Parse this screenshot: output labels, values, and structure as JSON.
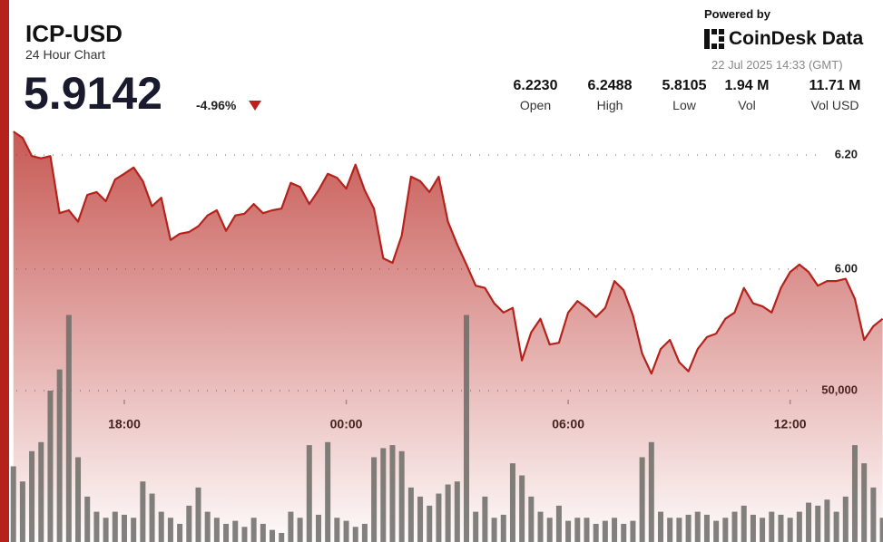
{
  "header": {
    "symbol": "ICP-USD",
    "subtitle": "24 Hour Chart",
    "price": "5.9142",
    "change": "-4.96%",
    "powered": "Powered by",
    "brand": "CoinDesk Data",
    "timestamp": "22 Jul 2025 14:33 (GMT)",
    "stats": [
      {
        "value": "6.2230",
        "label": "Open"
      },
      {
        "value": "6.2488",
        "label": "High"
      },
      {
        "value": "5.8105",
        "label": "Low"
      },
      {
        "value": "1.94 M",
        "label": "Vol"
      },
      {
        "value": "11.71 M",
        "label": "Vol USD"
      }
    ]
  },
  "chart_data": {
    "type": "line",
    "categories": [
      null,
      null,
      null,
      null,
      null,
      null,
      null,
      null,
      null,
      null,
      null,
      null,
      "18:00",
      null,
      null,
      null,
      null,
      null,
      null,
      null,
      null,
      null,
      null,
      null,
      null,
      null,
      null,
      null,
      null,
      null,
      null,
      null,
      null,
      null,
      null,
      null,
      "00:00",
      null,
      null,
      null,
      null,
      null,
      null,
      null,
      null,
      null,
      null,
      null,
      null,
      null,
      null,
      null,
      null,
      null,
      null,
      null,
      null,
      null,
      null,
      null,
      "06:00",
      null,
      null,
      null,
      null,
      null,
      null,
      null,
      null,
      null,
      null,
      null,
      null,
      null,
      null,
      null,
      null,
      null,
      null,
      null,
      null,
      null,
      null,
      null,
      "12:00",
      null,
      null,
      null,
      null,
      null,
      null,
      null,
      null,
      null,
      null
    ],
    "series": [
      {
        "color": "#b5221c",
        "values": [
          6.241,
          6.23,
          6.198,
          6.194,
          6.198,
          6.098,
          6.103,
          6.083,
          6.13,
          6.135,
          6.119,
          6.157,
          6.167,
          6.178,
          6.154,
          6.11,
          6.125,
          6.051,
          6.062,
          6.065,
          6.075,
          6.094,
          6.103,
          6.067,
          6.094,
          6.097,
          6.114,
          6.098,
          6.103,
          6.106,
          6.151,
          6.144,
          6.114,
          6.138,
          6.167,
          6.16,
          6.141,
          6.183,
          6.138,
          6.106,
          6.019,
          6.011,
          6.059,
          6.162,
          6.154,
          6.135,
          6.162,
          6.083,
          6.043,
          6.008,
          5.971,
          5.967,
          5.94,
          5.924,
          5.932,
          5.84,
          5.889,
          5.913,
          5.868,
          5.871,
          5.924,
          5.944,
          5.932,
          5.916,
          5.932,
          5.979,
          5.963,
          5.919,
          5.852,
          5.817,
          5.86,
          5.876,
          5.837,
          5.821,
          5.86,
          5.881,
          5.887,
          5.913,
          5.924,
          5.967,
          5.94,
          5.935,
          5.924,
          5.967,
          5.995,
          6.008,
          5.995,
          5.971,
          5.979,
          5.979,
          5.983,
          5.948,
          5.876,
          5.9,
          5.913
        ]
      },
      {
        "axis": "y2",
        "type": "bar",
        "color": "#6b6b66",
        "values": [
          25000,
          20000,
          30000,
          33000,
          50000,
          57000,
          75000,
          28000,
          15000,
          10000,
          8000,
          10000,
          9000,
          8000,
          20000,
          16000,
          10000,
          8000,
          6000,
          12000,
          18000,
          10000,
          8000,
          6000,
          7000,
          5000,
          8000,
          6000,
          4000,
          3000,
          10000,
          8000,
          32000,
          9000,
          33000,
          8000,
          7000,
          5000,
          6000,
          28000,
          31000,
          32000,
          30000,
          18000,
          15000,
          12000,
          16000,
          19000,
          20000,
          75000,
          10000,
          15000,
          8000,
          9000,
          26000,
          22000,
          15000,
          10000,
          8000,
          12000,
          7000,
          8000,
          8000,
          6000,
          7000,
          8000,
          6000,
          7000,
          28000,
          33000,
          10000,
          8000,
          8000,
          9000,
          10000,
          9000,
          7000,
          8000,
          10000,
          12000,
          9000,
          8000,
          10000,
          9000,
          8000,
          10000,
          13000,
          12000,
          14000,
          10000,
          15000,
          32000,
          26000,
          18000,
          8000
        ]
      }
    ],
    "ylim": [
      5.522,
      6.265
    ],
    "yticks": [
      {
        "value": 6.2,
        "label": "6.20"
      },
      {
        "value": 6,
        "label": "6.00"
      }
    ],
    "y2lim": [
      0,
      100000
    ],
    "y2ticks": [
      {
        "value": 50000,
        "label": "50,000"
      }
    ],
    "grid": true
  }
}
